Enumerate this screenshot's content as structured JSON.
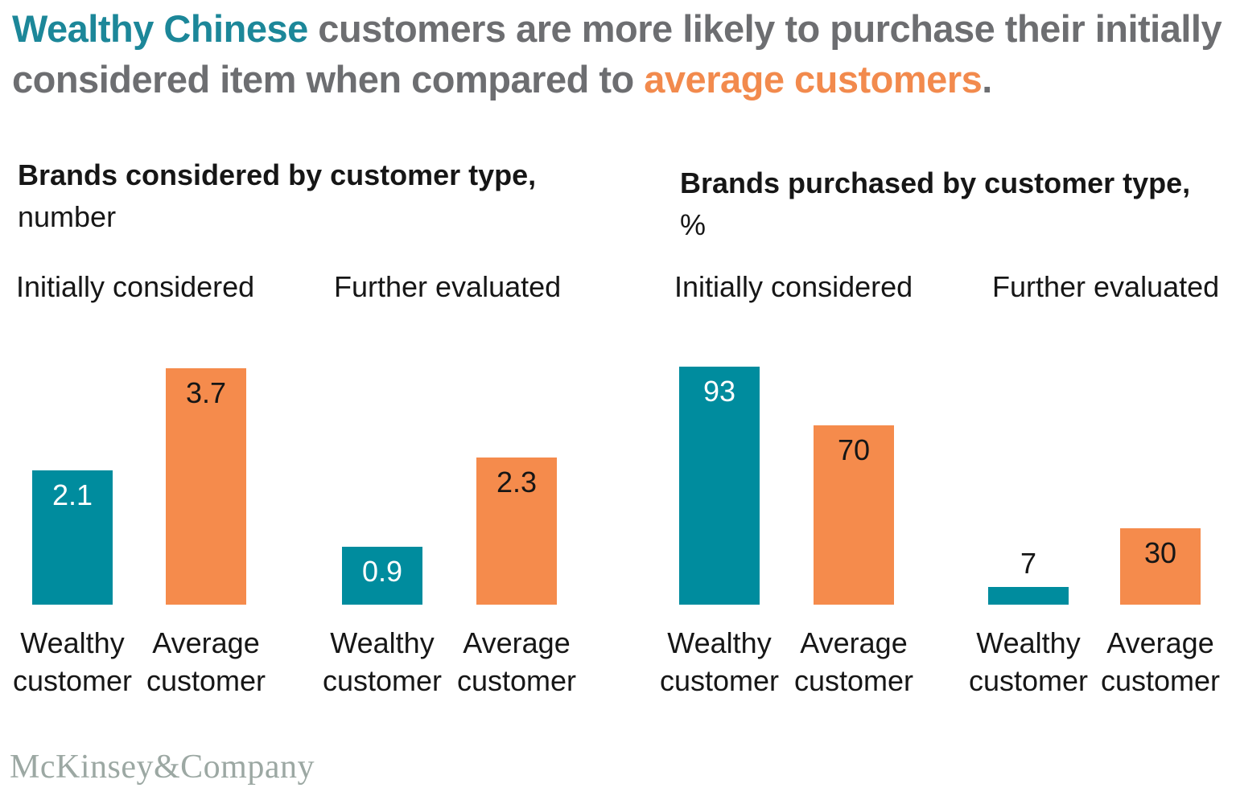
{
  "title": {
    "segments": [
      {
        "text": "Wealthy Chinese",
        "color": "#1C8799"
      },
      {
        "text": " customers are more likely to purchase their initially considered item when compared to ",
        "color": "#6D6E71"
      },
      {
        "text": "average customers",
        "color": "#F28A4D"
      },
      {
        "text": ".",
        "color": "#6D6E71"
      }
    ]
  },
  "colors": {
    "teal": "#008C9E",
    "orange": "#F58B4C",
    "title_gray": "#6D6E71",
    "text_dark": "#161616",
    "value_on_teal": "#FFFFFF",
    "value_on_orange": "#161616",
    "logo_gray": "#9CA8A3"
  },
  "footer": {
    "logo_text": "McKinsey&Company"
  },
  "chart_data": [
    {
      "type": "bar",
      "title": "Brands considered by customer type,",
      "unit_label": "number",
      "ylabel": "number of brands",
      "ylim": [
        0,
        3.72
      ],
      "grid": false,
      "legend": "none",
      "group_labels": [
        "Initially considered",
        "Further evaluated"
      ],
      "groups": [
        {
          "label": "Initially considered",
          "bars": [
            {
              "category": "Wealthy customer",
              "series": "Wealthy customer",
              "value": 2.1,
              "display": "2.1",
              "color_key": "teal"
            },
            {
              "category": "Average customer",
              "series": "Average customer",
              "value": 3.7,
              "display": "3.7",
              "color_key": "orange"
            }
          ]
        },
        {
          "label": "Further evaluated",
          "bars": [
            {
              "category": "Wealthy customer",
              "series": "Wealthy customer",
              "value": 0.9,
              "display": "0.9",
              "color_key": "teal"
            },
            {
              "category": "Average customer",
              "series": "Average customer",
              "value": 2.3,
              "display": "2.3",
              "color_key": "orange"
            }
          ]
        }
      ]
    },
    {
      "type": "bar",
      "title": "Brands purchased by customer type,",
      "unit_label": "%",
      "ylabel": "% of brands purchased",
      "ylim": [
        0,
        93.1
      ],
      "grid": false,
      "legend": "none",
      "group_labels": [
        "Initially considered",
        "Further evaluated"
      ],
      "groups": [
        {
          "label": "Initially considered",
          "bars": [
            {
              "category": "Wealthy customer",
              "series": "Wealthy customer",
              "value": 93,
              "display": "93",
              "color_key": "teal"
            },
            {
              "category": "Average customer",
              "series": "Average customer",
              "value": 70,
              "display": "70",
              "color_key": "orange"
            }
          ]
        },
        {
          "label": "Further evaluated",
          "bars": [
            {
              "category": "Wealthy customer",
              "series": "Wealthy customer",
              "value": 7,
              "display": "7",
              "color_key": "teal"
            },
            {
              "category": "Average customer",
              "series": "Average customer",
              "value": 30,
              "display": "30",
              "color_key": "orange"
            }
          ]
        }
      ]
    }
  ]
}
